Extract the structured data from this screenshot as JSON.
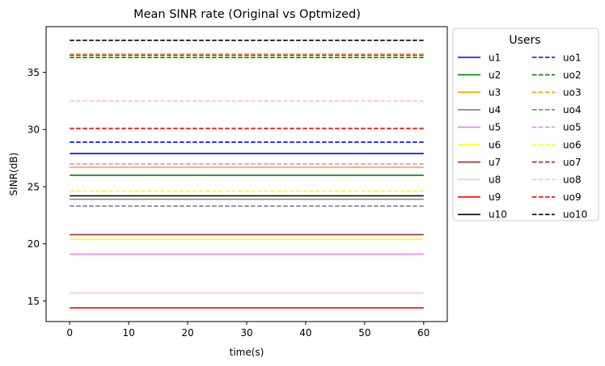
{
  "chart_data": {
    "type": "line",
    "title": "Mean SINR rate (Original vs Optmized)",
    "xlabel": "time(s)",
    "ylabel": "SINR(dB)",
    "xlim": [
      -4,
      64
    ],
    "ylim": [
      13.2,
      39.0
    ],
    "x_ticks": [
      0,
      10,
      20,
      30,
      40,
      50,
      60
    ],
    "y_ticks": [
      15,
      20,
      25,
      30,
      35
    ],
    "x": [
      0,
      60
    ],
    "legend": {
      "title": "Users",
      "placement": "outside upper-right",
      "columns": 2
    },
    "series": [
      {
        "name": "u1",
        "style": "solid",
        "color": "#0000ff",
        "values": [
          27.9,
          27.9
        ]
      },
      {
        "name": "u2",
        "style": "solid",
        "color": "#008000",
        "values": [
          26.0,
          26.0
        ]
      },
      {
        "name": "u3",
        "style": "solid",
        "color": "#ffa500",
        "values": [
          26.7,
          26.7
        ]
      },
      {
        "name": "u4",
        "style": "solid",
        "color": "#808080",
        "values": [
          23.9,
          23.9
        ]
      },
      {
        "name": "u5",
        "style": "solid",
        "color": "#ee82ee",
        "values": [
          19.1,
          19.1
        ]
      },
      {
        "name": "u6",
        "style": "solid",
        "color": "#ffff00",
        "values": [
          20.4,
          20.4
        ]
      },
      {
        "name": "u7",
        "style": "solid",
        "color": "#a52a2a",
        "values": [
          20.8,
          20.8
        ]
      },
      {
        "name": "u8",
        "style": "solid",
        "color": "#ffc0cb",
        "values": [
          15.7,
          15.7
        ]
      },
      {
        "name": "u9",
        "style": "solid",
        "color": "#ff0000",
        "values": [
          14.4,
          14.4
        ]
      },
      {
        "name": "u10",
        "style": "solid",
        "color": "#000000",
        "values": [
          24.2,
          24.2
        ]
      },
      {
        "name": "uo1",
        "style": "dashed",
        "color": "#0000ff",
        "values": [
          28.9,
          28.9
        ]
      },
      {
        "name": "uo2",
        "style": "dashed",
        "color": "#008000",
        "values": [
          36.3,
          36.3
        ]
      },
      {
        "name": "uo3",
        "style": "dashed",
        "color": "#ffa500",
        "values": [
          36.6,
          36.6
        ]
      },
      {
        "name": "uo4",
        "style": "dashed",
        "color": "#808080",
        "values": [
          23.3,
          23.3
        ]
      },
      {
        "name": "uo5",
        "style": "dashed",
        "color": "#ee82ee",
        "values": [
          27.0,
          27.0
        ]
      },
      {
        "name": "uo6",
        "style": "dashed",
        "color": "#ffff00",
        "values": [
          24.6,
          24.6
        ]
      },
      {
        "name": "uo7",
        "style": "dashed",
        "color": "#a52a2a",
        "values": [
          36.5,
          36.5
        ]
      },
      {
        "name": "uo8",
        "style": "dashed",
        "color": "#ffc0cb",
        "values": [
          32.5,
          32.5
        ]
      },
      {
        "name": "uo9",
        "style": "dashed",
        "color": "#ff0000",
        "values": [
          30.1,
          30.1
        ]
      },
      {
        "name": "uo10",
        "style": "dashed",
        "color": "#000000",
        "values": [
          37.8,
          37.8
        ]
      }
    ]
  }
}
